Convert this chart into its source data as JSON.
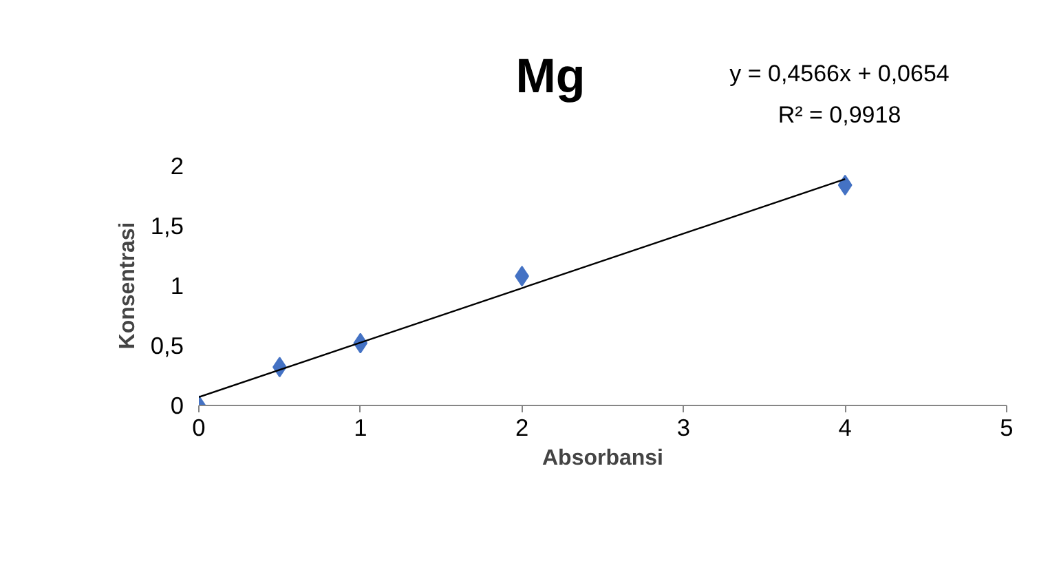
{
  "chart_data": {
    "type": "scatter",
    "title": "Mg",
    "xlabel": "Absorbansi",
    "ylabel": "Konsentrasi",
    "annotations": [
      "y = 0,4566x + 0,0654",
      "R² = 0,9918"
    ],
    "series": [
      {
        "color": "#4472c4",
        "marker": "diamond",
        "x": [
          0,
          0.5,
          1,
          2,
          4
        ],
        "values": [
          0,
          0.32,
          0.52,
          1.08,
          1.84
        ]
      },
      {
        "type": "line",
        "marker": "none",
        "color": "#000000",
        "x": [
          0,
          4
        ],
        "values": [
          0.07,
          1.89
        ]
      }
    ],
    "grid": false,
    "xlim": [
      0,
      5
    ],
    "xticks": [
      0,
      1,
      2,
      3,
      4,
      5
    ],
    "ylim": [
      0,
      2
    ],
    "yticks": [
      0,
      {
        "value": 0.5,
        "label": "0,5"
      },
      1,
      {
        "value": 1.5,
        "label": "1,5"
      },
      2
    ]
  }
}
